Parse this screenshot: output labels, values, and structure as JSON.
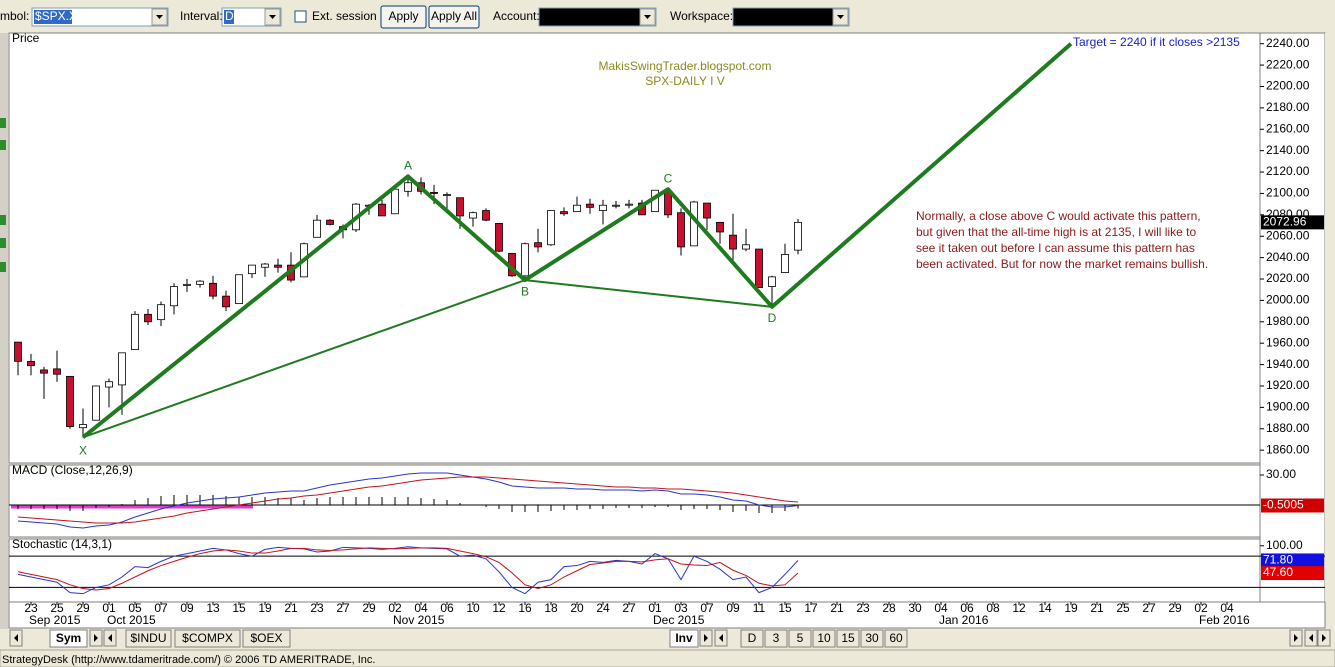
{
  "toolbar": {
    "symbol_label": "mbol:",
    "symbol": "$SPX.X",
    "interval_label": "Interval:",
    "interval": "D",
    "ext_session": "Ext. session",
    "apply": "Apply",
    "apply_all": "Apply All",
    "account_label": "Account:",
    "workspace_label": "Workspace:"
  },
  "chart_data": [
    {
      "type": "candlestick",
      "title": "Price",
      "open": [
        1961,
        1943,
        1935,
        1936,
        1929,
        1881,
        1888,
        1919,
        1921,
        1954,
        1987,
        1982,
        1995,
        2014,
        2015,
        2016,
        2004,
        1997,
        2025,
        2031,
        2033,
        2033,
        2022,
        2059,
        2075,
        2069,
        2066,
        2089,
        2090,
        2081,
        2102,
        2110,
        2101,
        2098,
        2096,
        2077,
        2084,
        2072,
        2044,
        2023,
        2054,
        2052,
        2083,
        2083,
        2090,
        2084,
        2089,
        2089,
        2091,
        2083,
        2102,
        2082,
        2051,
        2091,
        2073,
        2061,
        2048,
        2048,
        2013,
        2026,
        2047
      ],
      "high": [
        1961,
        1950,
        1938,
        1953,
        1929,
        1899,
        1920,
        1927,
        1951,
        1990,
        1992,
        1999,
        2016,
        2020,
        2019,
        2023,
        2009,
        2024,
        2033,
        2035,
        2039,
        2045,
        2054,
        2080,
        2076,
        2071,
        2091,
        2090,
        2094,
        2105,
        2116,
        2115,
        2108,
        2101,
        2096,
        2083,
        2086,
        2072,
        2044,
        2054,
        2067,
        2084,
        2087,
        2097,
        2095,
        2094,
        2093,
        2094,
        2094,
        2103,
        2104,
        2086,
        2093,
        2091,
        2073,
        2081,
        2067,
        2048,
        2023,
        2053,
        2076
      ],
      "low": [
        1930,
        1930,
        1908,
        1924,
        1880,
        1872,
        1888,
        1900,
        1893,
        1954,
        1977,
        1976,
        1987,
        2008,
        2012,
        2001,
        1990,
        1997,
        2021,
        2022,
        2026,
        2017,
        2022,
        2059,
        2070,
        2058,
        2064,
        2080,
        2079,
        2081,
        2097,
        2099,
        2090,
        2084,
        2067,
        2069,
        2074,
        2045,
        2022,
        2020,
        2045,
        2051,
        2079,
        2083,
        2081,
        2071,
        2086,
        2086,
        2080,
        2083,
        2077,
        2042,
        2051,
        2066,
        2053,
        2036,
        2046,
        2012,
        1993,
        2026,
        2043
      ],
      "close": [
        1943,
        1939,
        1932,
        1931,
        1882,
        1884,
        1920,
        1924,
        1951,
        1987,
        1980,
        1996,
        2013,
        2015,
        2018,
        2004,
        1994,
        2024,
        2033,
        2034,
        2031,
        2019,
        2053,
        2075,
        2071,
        2066,
        2090,
        2089,
        2079,
        2104,
        2110,
        2102,
        2100,
        2099,
        2079,
        2082,
        2075,
        2046,
        2023,
        2053,
        2050,
        2084,
        2081,
        2089,
        2087,
        2089,
        2089,
        2090,
        2080,
        2103,
        2080,
        2050,
        2092,
        2077,
        2064,
        2048,
        2052,
        2012,
        2022,
        2043,
        2072.96
      ],
      "ylim": [
        1848,
        2250
      ],
      "yticks": [
        {
          "value": 1860,
          "label": "1860.00"
        },
        {
          "value": 1880,
          "label": "1880.00"
        },
        {
          "value": 1900,
          "label": "1900.00"
        },
        {
          "value": 1920,
          "label": "1920.00"
        },
        {
          "value": 1940,
          "label": "1940.00"
        },
        {
          "value": 1960,
          "label": "1960.00"
        },
        {
          "value": 1980,
          "label": "1980.00"
        },
        {
          "value": 2000,
          "label": "2000.00"
        },
        {
          "value": 2020,
          "label": "2020.00"
        },
        {
          "value": 2040,
          "label": "2040.00"
        },
        {
          "value": 2060,
          "label": "2060.00"
        },
        {
          "value": 2080,
          "label": "2080.00"
        },
        {
          "value": 2100,
          "label": "2100.00"
        },
        {
          "value": 2120,
          "label": "2120.00"
        },
        {
          "value": 2140,
          "label": "2140.00"
        },
        {
          "value": 2160,
          "label": "2160.00"
        },
        {
          "value": 2180,
          "label": "2180.00"
        },
        {
          "value": 2200,
          "label": "2200.00"
        },
        {
          "value": 2220,
          "label": "2220.00"
        },
        {
          "value": 2240,
          "label": "2240.00"
        }
      ],
      "colors": {
        "up": "#ffffff",
        "down": "#c8102e",
        "pattern": "#1e7b1e"
      },
      "pattern": {
        "labels": [
          "X",
          "A",
          "B",
          "C",
          "D"
        ],
        "x": [
          5,
          30,
          39,
          50,
          58
        ],
        "y": [
          1872,
          2116,
          2019,
          2104,
          1994
        ]
      },
      "target": {
        "x": 81,
        "y": 2240,
        "label": "Target = 2240 if it closes >2135"
      },
      "watermark": [
        "MakisSwingTrader.blogspot.com",
        "SPX-DAILY  I V"
      ],
      "note": [
        "Normally, a close above C would activate this pattern,",
        "but given that the all-time high is at 2135, I will like to",
        "see it taken out before I can assume this pattern has",
        "been activated. But for now the market remains bullish."
      ]
    },
    {
      "type": "macd",
      "title": "MACD (Close,12,26,9)",
      "series": [
        {
          "color": "#2b35c8",
          "values": [
            -16,
            -17,
            -18,
            -19,
            -22,
            -23,
            -21,
            -20,
            -17,
            -12,
            -8,
            -4,
            -1,
            2,
            4,
            6,
            7,
            8,
            10,
            12,
            13,
            14,
            14,
            17,
            20,
            22,
            24,
            26,
            27,
            29,
            31,
            32,
            32,
            32,
            30,
            28,
            26,
            23,
            19,
            18,
            17,
            17,
            17,
            16,
            16,
            15,
            15,
            15,
            14,
            15,
            14,
            11,
            11,
            10,
            8,
            5,
            4,
            0,
            -2,
            -2,
            -0.5005
          ]
        },
        {
          "color": "#c0141e",
          "values": [
            -12,
            -13,
            -14,
            -15,
            -16,
            -17,
            -18,
            -18,
            -18,
            -17,
            -15,
            -13,
            -11,
            -8,
            -6,
            -4,
            -2,
            0,
            2,
            4,
            6,
            7,
            9,
            10,
            12,
            14,
            16,
            18,
            19,
            21,
            23,
            25,
            26,
            27,
            28,
            28,
            28,
            27,
            26,
            25,
            24,
            23,
            22,
            21,
            20,
            19,
            18,
            18,
            17,
            17,
            16,
            16,
            15,
            14,
            13,
            12,
            10,
            8,
            6,
            4,
            3
          ]
        }
      ],
      "histogram": [
        -4,
        -4,
        -4,
        -4,
        -6,
        -6,
        -3,
        -2,
        1,
        5,
        7,
        9,
        10,
        10,
        10,
        10,
        9,
        8,
        8,
        8,
        7,
        7,
        5,
        7,
        8,
        8,
        8,
        8,
        8,
        8,
        8,
        7,
        6,
        5,
        2,
        0,
        -2,
        -4,
        -7,
        -7,
        -7,
        -6,
        -5,
        -5,
        -4,
        -4,
        -3,
        -3,
        -3,
        -2,
        -2,
        -5,
        -4,
        -4,
        -5,
        -7,
        -6,
        -8,
        -8,
        -6,
        -3.5
      ],
      "ylim": [
        -32,
        40
      ],
      "yticks": [
        {
          "value": 30,
          "label": "30.00"
        }
      ]
    },
    {
      "type": "line",
      "title": "Stochastic (14,3,1)",
      "series": [
        {
          "color": "#2b35c8",
          "values": [
            45,
            40,
            35,
            30,
            10,
            8,
            20,
            25,
            40,
            60,
            58,
            70,
            80,
            85,
            90,
            95,
            92,
            85,
            80,
            93,
            97,
            95,
            94,
            88,
            90,
            97,
            96,
            95,
            93,
            95,
            98,
            96,
            95,
            94,
            80,
            82,
            75,
            50,
            20,
            8,
            30,
            35,
            60,
            62,
            70,
            68,
            72,
            70,
            65,
            85,
            75,
            35,
            80,
            70,
            55,
            35,
            40,
            10,
            20,
            45,
            71.8
          ],
          "value_labels": [
            null,
            null,
            null,
            null,
            null,
            null,
            null,
            null,
            null,
            null,
            null,
            null,
            null,
            null,
            null,
            null,
            null,
            null,
            null,
            null,
            null,
            null,
            null,
            null,
            null,
            null,
            null,
            null,
            null,
            null,
            null,
            null,
            null,
            null,
            null,
            null,
            null,
            null,
            null,
            null,
            null,
            null,
            null,
            null,
            null,
            null,
            null,
            null,
            null,
            null,
            null,
            null,
            null,
            null,
            null,
            null,
            null,
            null,
            null,
            null,
            "71.80"
          ]
        },
        {
          "color": "#c0141e",
          "values": [
            50,
            45,
            40,
            35,
            25,
            18,
            15,
            18,
            28,
            40,
            52,
            62,
            70,
            78,
            85,
            90,
            92,
            90,
            86,
            86,
            90,
            95,
            95,
            92,
            91,
            92,
            94,
            96,
            95,
            94,
            95,
            96,
            96,
            95,
            90,
            85,
            79,
            68,
            48,
            25,
            18,
            25,
            40,
            52,
            64,
            67,
            70,
            70,
            69,
            73,
            75,
            65,
            63,
            62,
            68,
            53,
            43,
            28,
            23,
            25,
            47.6
          ],
          "value_labels": [
            null,
            null,
            null,
            null,
            null,
            null,
            null,
            null,
            null,
            null,
            null,
            null,
            null,
            null,
            null,
            null,
            null,
            null,
            null,
            null,
            null,
            null,
            null,
            null,
            null,
            null,
            null,
            null,
            null,
            null,
            null,
            null,
            null,
            null,
            null,
            null,
            null,
            null,
            null,
            null,
            null,
            null,
            null,
            null,
            null,
            null,
            null,
            null,
            null,
            null,
            null,
            null,
            null,
            null,
            null,
            null,
            null,
            null,
            null,
            null,
            "47.60"
          ]
        }
      ],
      "levels": [
        20,
        80
      ],
      "ylim": [
        -8,
        113
      ],
      "yticks": [
        {
          "value": 100,
          "label": "100.00"
        }
      ]
    }
  ],
  "x_axis": {
    "labels": [
      "23",
      "25",
      "29",
      "01",
      "05",
      "07",
      "09",
      "13",
      "15",
      "19",
      "21",
      "23",
      "27",
      "29",
      "02",
      "04",
      "06",
      "10",
      "12",
      "16",
      "18",
      "20",
      "24",
      "27",
      "01",
      "03",
      "07",
      "09",
      "11",
      "15",
      "17",
      "21",
      "23",
      "28",
      "30",
      "04",
      "06",
      "08",
      "12",
      "14",
      "19",
      "21",
      "25",
      "27",
      "29",
      "02",
      "04"
    ],
    "months": [
      "Sep 2015",
      null,
      null,
      "Oct 2015",
      null,
      null,
      null,
      null,
      null,
      null,
      null,
      null,
      null,
      null,
      "Nov 2015",
      null,
      null,
      null,
      null,
      null,
      null,
      null,
      null,
      null,
      "Dec 2015",
      null,
      null,
      null,
      null,
      null,
      null,
      null,
      null,
      null,
      null,
      "Jan 2016",
      null,
      null,
      null,
      null,
      null,
      null,
      null,
      null,
      null,
      "Feb 2016",
      null
    ]
  },
  "tabs": {
    "symbols": [
      "Sym",
      "$INDU",
      "$COMPX",
      "$OEX"
    ],
    "inv": "Inv",
    "intervals": [
      "D",
      "3",
      "5",
      "10",
      "15",
      "30",
      "60"
    ]
  },
  "status": "StrategyDesk (http://www.tdameritrade.com/) © 2006 TD AMERITRADE, Inc."
}
